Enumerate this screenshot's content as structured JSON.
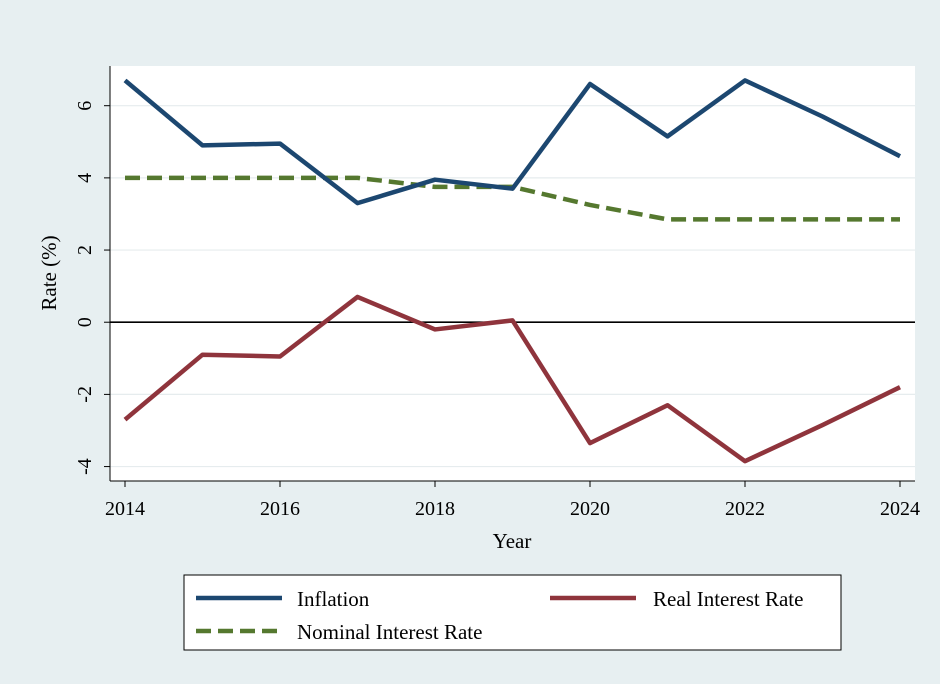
{
  "chart_data": {
    "type": "line",
    "title": "",
    "xlabel": "Year",
    "ylabel": "Rate (%)",
    "x": [
      2014,
      2015,
      2016,
      2017,
      2018,
      2019,
      2020,
      2021,
      2022,
      2023,
      2024
    ],
    "xlim": [
      2014,
      2024
    ],
    "ylim": [
      -4.4,
      7.1
    ],
    "x_ticks": [
      2014,
      2016,
      2018,
      2020,
      2022,
      2024
    ],
    "y_ticks": [
      -4,
      -2,
      0,
      2,
      4,
      6
    ],
    "grid": "horizontal",
    "zero_line": true,
    "legend_position": "bottom",
    "series": [
      {
        "name": "Inflation",
        "style": "solid",
        "color": "#1c4770",
        "values": [
          6.7,
          4.9,
          4.95,
          3.3,
          3.95,
          3.7,
          6.6,
          5.15,
          6.7,
          5.7,
          4.6
        ]
      },
      {
        "name": "Real Interest Rate",
        "style": "solid",
        "color": "#8f343c",
        "values": [
          -2.7,
          -0.9,
          -0.95,
          0.7,
          -0.2,
          0.05,
          -3.35,
          -2.3,
          -3.85,
          -2.85,
          -1.8
        ]
      },
      {
        "name": "Nominal Interest Rate",
        "style": "dashed",
        "color": "#55782f",
        "values": [
          4.0,
          4.0,
          4.0,
          4.0,
          3.75,
          3.75,
          3.25,
          2.85,
          2.85,
          2.85,
          2.85
        ]
      }
    ]
  }
}
